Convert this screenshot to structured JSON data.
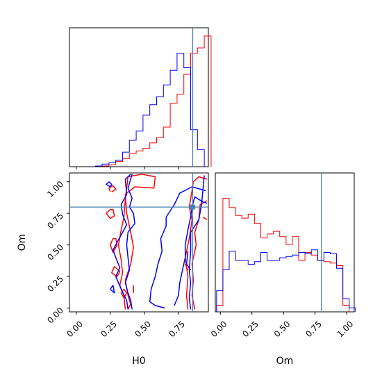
{
  "chart_data": {
    "type": "corner",
    "parameters": [
      "H0",
      "Om"
    ],
    "truth": {
      "H0": 0.855,
      "Om": 0.8
    },
    "colors": {
      "red": "#ff0000",
      "blue": "#0000ff",
      "truth": "#4682b4"
    },
    "ticks": {
      "H0": [
        "0.00",
        "0.25",
        "0.50",
        "0.75"
      ],
      "Om": [
        "0.00",
        "0.25",
        "0.50",
        "0.75",
        "1.00"
      ]
    },
    "ranges": {
      "H0": [
        -0.05,
        0.97
      ],
      "Om": [
        -0.03,
        1.07
      ],
      "Om_hist_x": [
        -0.04,
        1.06
      ]
    },
    "hist_H0": {
      "red": [
        [
          0.19,
          0.005
        ],
        [
          0.24,
          0.015
        ],
        [
          0.29,
          0.04
        ],
        [
          0.34,
          0.06
        ],
        [
          0.39,
          0.1
        ],
        [
          0.44,
          0.12
        ],
        [
          0.49,
          0.14
        ],
        [
          0.54,
          0.18
        ],
        [
          0.59,
          0.22
        ],
        [
          0.64,
          0.3
        ],
        [
          0.69,
          0.48
        ],
        [
          0.74,
          0.55
        ],
        [
          0.79,
          0.7
        ],
        [
          0.84,
          0.86
        ],
        [
          0.89,
          0.9
        ],
        [
          0.94,
          0.99
        ]
      ],
      "blue": [
        [
          0.14,
          0.005
        ],
        [
          0.19,
          0.02
        ],
        [
          0.24,
          0.03
        ],
        [
          0.29,
          0.05
        ],
        [
          0.34,
          0.11
        ],
        [
          0.39,
          0.2
        ],
        [
          0.44,
          0.27
        ],
        [
          0.49,
          0.39
        ],
        [
          0.54,
          0.47
        ],
        [
          0.59,
          0.53
        ],
        [
          0.64,
          0.62
        ],
        [
          0.69,
          0.73
        ],
        [
          0.74,
          0.86
        ],
        [
          0.79,
          0.75
        ],
        [
          0.84,
          0.28
        ],
        [
          0.89,
          0.13
        ]
      ]
    },
    "hist_Om": {
      "red": [
        [
          -0.03,
          0.05
        ],
        [
          0.02,
          0.86
        ],
        [
          0.07,
          0.79
        ],
        [
          0.12,
          0.73
        ],
        [
          0.17,
          0.71
        ],
        [
          0.22,
          0.74
        ],
        [
          0.27,
          0.67
        ],
        [
          0.32,
          0.56
        ],
        [
          0.37,
          0.59
        ],
        [
          0.42,
          0.61
        ],
        [
          0.47,
          0.57
        ],
        [
          0.52,
          0.51
        ],
        [
          0.57,
          0.57
        ],
        [
          0.62,
          0.39
        ],
        [
          0.67,
          0.45
        ],
        [
          0.72,
          0.43
        ],
        [
          0.77,
          0.39
        ],
        [
          0.82,
          0.38
        ],
        [
          0.87,
          0.37
        ],
        [
          0.92,
          0.35
        ],
        [
          0.97,
          0.05
        ]
      ],
      "blue": [
        [
          -0.03,
          0.16
        ],
        [
          0.02,
          0.32
        ],
        [
          0.07,
          0.46
        ],
        [
          0.12,
          0.39
        ],
        [
          0.17,
          0.39
        ],
        [
          0.22,
          0.36
        ],
        [
          0.27,
          0.38
        ],
        [
          0.32,
          0.45
        ],
        [
          0.37,
          0.39
        ],
        [
          0.42,
          0.39
        ],
        [
          0.47,
          0.41
        ],
        [
          0.52,
          0.42
        ],
        [
          0.57,
          0.43
        ],
        [
          0.62,
          0.45
        ],
        [
          0.67,
          0.44
        ],
        [
          0.72,
          0.47
        ],
        [
          0.77,
          0.39
        ],
        [
          0.82,
          0.45
        ],
        [
          0.87,
          0.44
        ],
        [
          0.92,
          0.33
        ],
        [
          0.97,
          0.1
        ],
        [
          1.02,
          0.03
        ]
      ]
    },
    "contours": {
      "red": [
        [
          [
            0.36,
            -0.01
          ],
          [
            0.35,
            0.1
          ],
          [
            0.32,
            0.18
          ],
          [
            0.34,
            0.28
          ],
          [
            0.33,
            0.38
          ],
          [
            0.31,
            0.5
          ],
          [
            0.33,
            0.62
          ],
          [
            0.35,
            0.72
          ],
          [
            0.36,
            0.86
          ],
          [
            0.38,
            1.04
          ],
          [
            0.48,
            1.06
          ],
          [
            0.58,
            1.04
          ],
          [
            0.57,
            0.95
          ],
          [
            0.43,
            0.96
          ],
          [
            0.36,
            0.9
          ],
          [
            0.37,
            0.75
          ],
          [
            0.4,
            0.6
          ],
          [
            0.42,
            0.48
          ],
          [
            0.4,
            0.35
          ],
          [
            0.36,
            0.22
          ],
          [
            0.38,
            0.1
          ],
          [
            0.4,
            0.03
          ],
          [
            0.38,
            -0.01
          ]
        ],
        [
          [
            0.82,
            -0.01
          ],
          [
            0.81,
            0.1
          ],
          [
            0.82,
            0.25
          ],
          [
            0.8,
            0.4
          ],
          [
            0.83,
            0.55
          ],
          [
            0.85,
            0.7
          ],
          [
            0.83,
            0.8
          ],
          [
            0.85,
            0.93
          ],
          [
            0.86,
            1.0
          ],
          [
            0.9,
            1.04
          ],
          [
            0.96,
            1.02
          ]
        ],
        [
          [
            0.87,
            -0.01
          ],
          [
            0.85,
            0.1
          ],
          [
            0.86,
            0.22
          ],
          [
            0.85,
            0.35
          ],
          [
            0.88,
            0.5
          ],
          [
            0.87,
            0.6
          ],
          [
            0.9,
            0.7
          ],
          [
            0.91,
            0.82
          ],
          [
            0.96,
            0.85
          ]
        ],
        [
          [
            0.25,
            0.92
          ],
          [
            0.24,
            0.95
          ],
          [
            0.27,
            0.97
          ],
          [
            0.29,
            0.94
          ],
          [
            0.26,
            0.92
          ]
        ],
        [
          [
            0.27,
            0.55
          ],
          [
            0.25,
            0.5
          ],
          [
            0.27,
            0.44
          ],
          [
            0.3,
            0.5
          ],
          [
            0.29,
            0.55
          ],
          [
            0.27,
            0.55
          ]
        ],
        [
          [
            0.25,
            0.78
          ],
          [
            0.22,
            0.75
          ],
          [
            0.25,
            0.71
          ],
          [
            0.28,
            0.73
          ],
          [
            0.27,
            0.78
          ],
          [
            0.25,
            0.78
          ]
        ],
        [
          [
            0.28,
            0.33
          ],
          [
            0.26,
            0.28
          ],
          [
            0.3,
            0.25
          ],
          [
            0.32,
            0.29
          ],
          [
            0.28,
            0.33
          ]
        ],
        [
          [
            0.35,
            0.15
          ],
          [
            0.33,
            0.12
          ],
          [
            0.35,
            0.08
          ],
          [
            0.37,
            0.12
          ],
          [
            0.35,
            0.15
          ]
        ],
        [
          [
            0.42,
            0.18
          ],
          [
            0.42,
            0.12
          ]
        ],
        [
          [
            0.8,
            0.35
          ],
          [
            0.82,
            0.3
          ]
        ],
        [
          [
            0.93,
            0.72
          ],
          [
            0.96,
            0.7
          ]
        ]
      ],
      "blue": [
        [
          [
            0.38,
            -0.01
          ],
          [
            0.37,
            0.06
          ],
          [
            0.33,
            0.15
          ],
          [
            0.29,
            0.25
          ],
          [
            0.32,
            0.32
          ],
          [
            0.29,
            0.4
          ],
          [
            0.27,
            0.46
          ],
          [
            0.3,
            0.52
          ],
          [
            0.34,
            0.6
          ],
          [
            0.37,
            0.66
          ],
          [
            0.34,
            0.74
          ],
          [
            0.33,
            0.82
          ],
          [
            0.37,
            0.9
          ],
          [
            0.36,
            1.02
          ],
          [
            0.4,
            1.06
          ]
        ],
        [
          [
            0.41,
            -0.01
          ],
          [
            0.4,
            0.06
          ],
          [
            0.38,
            0.12
          ],
          [
            0.36,
            0.2
          ],
          [
            0.39,
            0.3
          ],
          [
            0.38,
            0.4
          ],
          [
            0.37,
            0.5
          ],
          [
            0.38,
            0.6
          ],
          [
            0.43,
            0.67
          ],
          [
            0.42,
            0.75
          ],
          [
            0.39,
            0.8
          ],
          [
            0.41,
            0.87
          ],
          [
            0.38,
            0.95
          ],
          [
            0.41,
            1.06
          ]
        ],
        [
          [
            0.65,
            0.0
          ],
          [
            0.58,
            0.02
          ],
          [
            0.54,
            0.05
          ],
          [
            0.55,
            0.15
          ],
          [
            0.58,
            0.25
          ],
          [
            0.6,
            0.35
          ],
          [
            0.63,
            0.45
          ],
          [
            0.62,
            0.55
          ],
          [
            0.66,
            0.65
          ],
          [
            0.66,
            0.72
          ],
          [
            0.72,
            0.82
          ],
          [
            0.76,
            0.91
          ],
          [
            0.85,
            0.96
          ],
          [
            0.95,
            0.93
          ]
        ],
        [
          [
            0.72,
            0.02
          ],
          [
            0.75,
            0.1
          ],
          [
            0.76,
            0.2
          ],
          [
            0.78,
            0.3
          ],
          [
            0.8,
            0.4
          ],
          [
            0.8,
            0.5
          ],
          [
            0.82,
            0.62
          ],
          [
            0.84,
            0.72
          ],
          [
            0.85,
            0.8
          ],
          [
            0.87,
            0.88
          ],
          [
            0.93,
            0.84
          ],
          [
            0.96,
            0.83
          ]
        ],
        [
          [
            0.84,
            -0.01
          ],
          [
            0.83,
            0.08
          ],
          [
            0.84,
            0.2
          ],
          [
            0.83,
            0.3
          ],
          [
            0.84,
            0.45
          ],
          [
            0.84,
            0.6
          ],
          [
            0.87,
            0.65
          ],
          [
            0.9,
            0.7
          ],
          [
            0.92,
            0.82
          ],
          [
            0.94,
            1.05
          ]
        ],
        [
          [
            0.24,
            1.0
          ],
          [
            0.22,
            0.98
          ],
          [
            0.25,
            0.96
          ],
          [
            0.26,
            0.98
          ],
          [
            0.24,
            1.0
          ]
        ],
        [
          [
            0.25,
            0.15
          ],
          [
            0.28,
            0.12
          ],
          [
            0.27,
            0.18
          ],
          [
            0.25,
            0.15
          ]
        ],
        [
          [
            0.82,
            0.45
          ],
          [
            0.81,
            0.35
          ],
          [
            0.84,
            0.3
          ]
        ]
      ]
    }
  }
}
